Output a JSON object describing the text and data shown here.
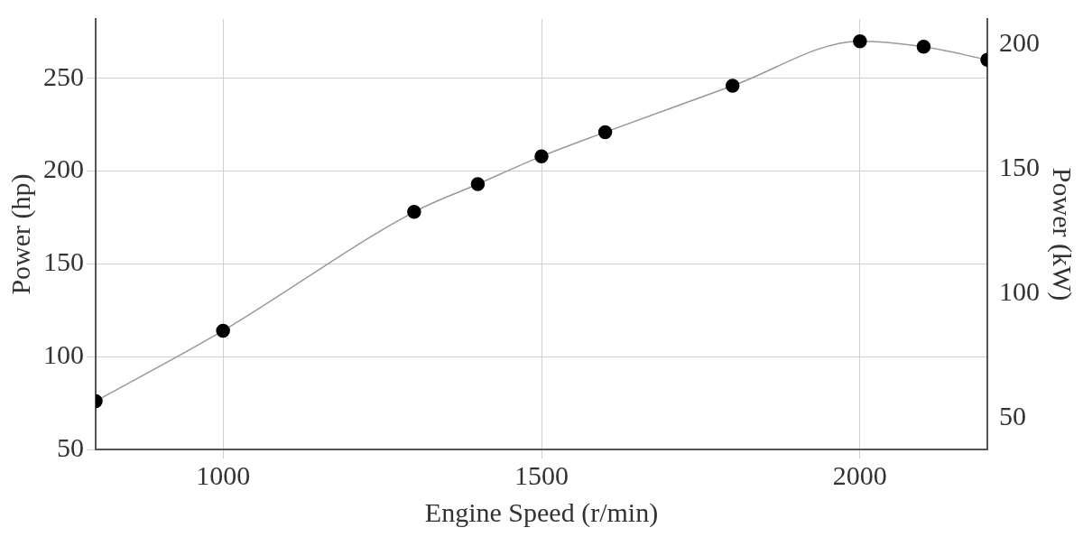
{
  "chart_data": {
    "type": "line",
    "xlabel": "Engine Speed (r/min)",
    "ylabel": "Power (hp)",
    "y2label": "Power (kW)",
    "x": [
      800,
      1000,
      1300,
      1400,
      1500,
      1600,
      1800,
      2000,
      2100,
      2200
    ],
    "series": [
      {
        "color": "#000000",
        "values": [
          76,
          114,
          178,
          193,
          208,
          221,
          246,
          270,
          267,
          260
        ]
      }
    ],
    "xlim": [
      800,
      2200
    ],
    "xticks": [
      1000,
      1500,
      2000
    ],
    "ylim": [
      50,
      282
    ],
    "yticks": [
      50,
      100,
      150,
      200,
      250
    ],
    "y2lim": [
      37.3,
      210.3
    ],
    "y2ticks": [
      50,
      100,
      150,
      200
    ],
    "grid": true,
    "marker": "circle",
    "line_style": "solid"
  }
}
